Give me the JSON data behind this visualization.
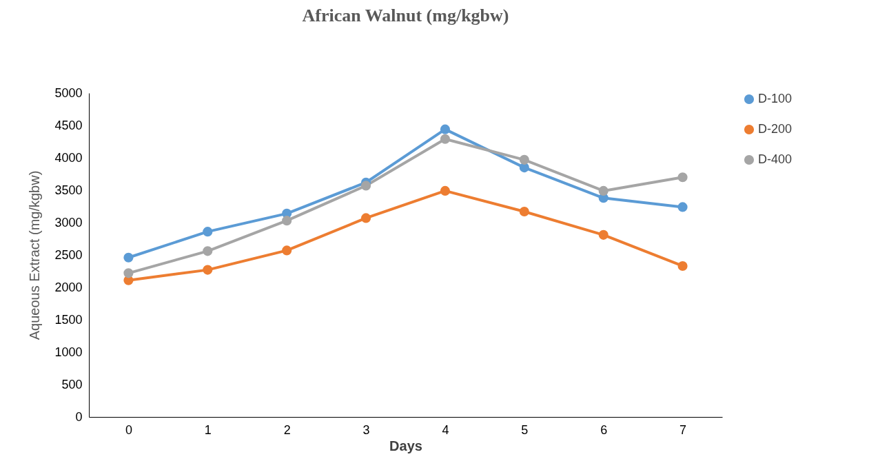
{
  "chart_data": {
    "type": "line",
    "title": "African Walnut (mg/kgbw)",
    "xlabel": "Days",
    "ylabel": "Aqueous Extract  (mg/kgbw)",
    "categories": [
      "0",
      "1",
      "2",
      "3",
      "4",
      "5",
      "6",
      "7"
    ],
    "series": [
      {
        "name": "D-100",
        "color": "#5b9bd5",
        "values": [
          2460,
          2860,
          3140,
          3620,
          4440,
          3850,
          3380,
          3240
        ]
      },
      {
        "name": "D-200",
        "color": "#ed7d31",
        "values": [
          2110,
          2270,
          2570,
          3070,
          3490,
          3170,
          2810,
          2330
        ]
      },
      {
        "name": "D-400",
        "color": "#a5a5a5",
        "values": [
          2220,
          2560,
          3030,
          3570,
          4290,
          3970,
          3490,
          3700
        ]
      }
    ],
    "ylim": [
      0,
      5000
    ],
    "yticks": [
      0,
      500,
      1000,
      1500,
      2000,
      2500,
      3000,
      3500,
      4000,
      4500,
      5000
    ],
    "grid": false,
    "legend": "right",
    "marker": "circle",
    "line_style": "solid"
  }
}
